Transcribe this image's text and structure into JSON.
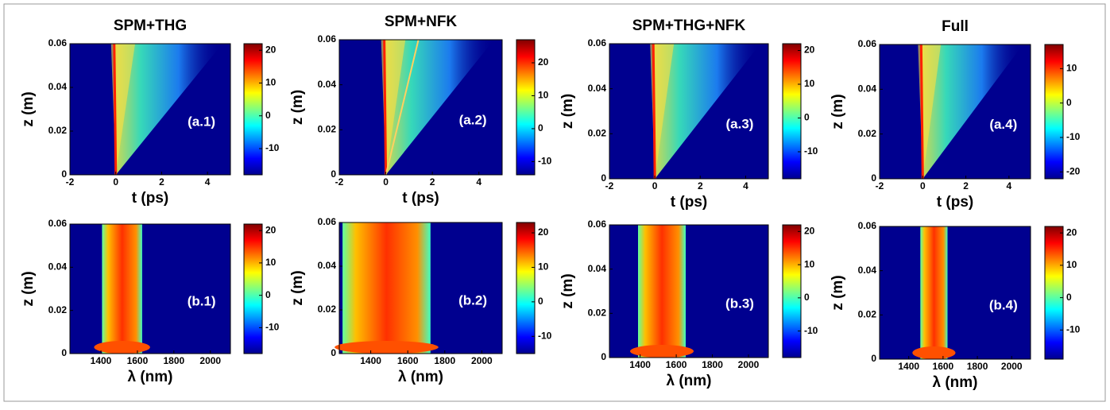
{
  "chart_data": [
    {
      "type": "heatmap",
      "title": "SPM+THG",
      "annotation": "(a.1)",
      "xlabel": "t (ps)",
      "ylabel": "z (m)",
      "xlim": [
        -2,
        5
      ],
      "xticks": [
        -2,
        0,
        2,
        4
      ],
      "ylim": [
        0,
        0.06
      ],
      "yticks": [
        0,
        0.02,
        0.04,
        0.06
      ],
      "clim": [
        -18,
        22
      ],
      "cticks": [
        -10,
        0,
        10,
        20
      ]
    },
    {
      "type": "heatmap",
      "title": "SPM+NFK",
      "annotation": "(a.2)",
      "xlabel": "t (ps)",
      "ylabel": "z (m)",
      "xlim": [
        -2,
        5
      ],
      "xticks": [
        -2,
        0,
        2,
        4
      ],
      "ylim": [
        0,
        0.06
      ],
      "yticks": [
        0,
        0.02,
        0.04,
        0.06
      ],
      "clim": [
        -14,
        27
      ],
      "cticks": [
        -10,
        0,
        10,
        20
      ]
    },
    {
      "type": "heatmap",
      "title": "SPM+THG+NFK",
      "annotation": "(a.3)",
      "xlabel": "t (ps)",
      "ylabel": "z (m)",
      "xlim": [
        -2,
        5
      ],
      "xticks": [
        -2,
        0,
        2,
        4
      ],
      "ylim": [
        0,
        0.06
      ],
      "yticks": [
        0,
        0.02,
        0.04,
        0.06
      ],
      "clim": [
        -18,
        22
      ],
      "cticks": [
        -10,
        0,
        10,
        20
      ]
    },
    {
      "type": "heatmap",
      "title": "Full",
      "annotation": "(a.4)",
      "xlabel": "t (ps)",
      "ylabel": "z (m)",
      "xlim": [
        -2,
        5
      ],
      "xticks": [
        -2,
        0,
        2,
        4
      ],
      "ylim": [
        0,
        0.06
      ],
      "yticks": [
        0,
        0.02,
        0.04,
        0.06
      ],
      "clim": [
        -22,
        17
      ],
      "cticks": [
        -20,
        -10,
        0,
        10
      ]
    },
    {
      "type": "heatmap",
      "annotation": "(b.1)",
      "xlabel": "λ (nm)",
      "ylabel": "z (m)",
      "xlim": [
        1230,
        2110
      ],
      "xticks": [
        1400,
        1600,
        1800,
        2000
      ],
      "ylim": [
        0,
        0.06
      ],
      "yticks": [
        0,
        0.02,
        0.04,
        0.06
      ],
      "clim": [
        -18,
        22
      ],
      "cticks": [
        -10,
        0,
        10,
        20
      ]
    },
    {
      "type": "heatmap",
      "annotation": "(b.2)",
      "xlabel": "λ (nm)",
      "ylabel": "z (m)",
      "xlim": [
        1230,
        2110
      ],
      "xticks": [
        1400,
        1600,
        1800,
        2000
      ],
      "ylim": [
        0,
        0.06
      ],
      "yticks": [
        0,
        0.02,
        0.04,
        0.06
      ],
      "clim": [
        -15,
        23
      ],
      "cticks": [
        -10,
        0,
        10,
        20
      ]
    },
    {
      "type": "heatmap",
      "annotation": "(b.3)",
      "xlabel": "λ (nm)",
      "ylabel": "z (m)",
      "xlim": [
        1230,
        2110
      ],
      "xticks": [
        1400,
        1600,
        1800,
        2000
      ],
      "ylim": [
        0,
        0.06
      ],
      "yticks": [
        0,
        0.02,
        0.04,
        0.06
      ],
      "clim": [
        -18,
        22
      ],
      "cticks": [
        -10,
        0,
        10,
        20
      ]
    },
    {
      "type": "heatmap",
      "annotation": "(b.4)",
      "xlabel": "λ (nm)",
      "ylabel": "z (m)",
      "xlim": [
        1230,
        2110
      ],
      "xticks": [
        1400,
        1600,
        1800,
        2000
      ],
      "ylim": [
        0,
        0.06
      ],
      "yticks": [
        0,
        0.02,
        0.04,
        0.06
      ],
      "clim": [
        -19,
        22
      ],
      "cticks": [
        -10,
        0,
        10,
        20
      ]
    }
  ]
}
